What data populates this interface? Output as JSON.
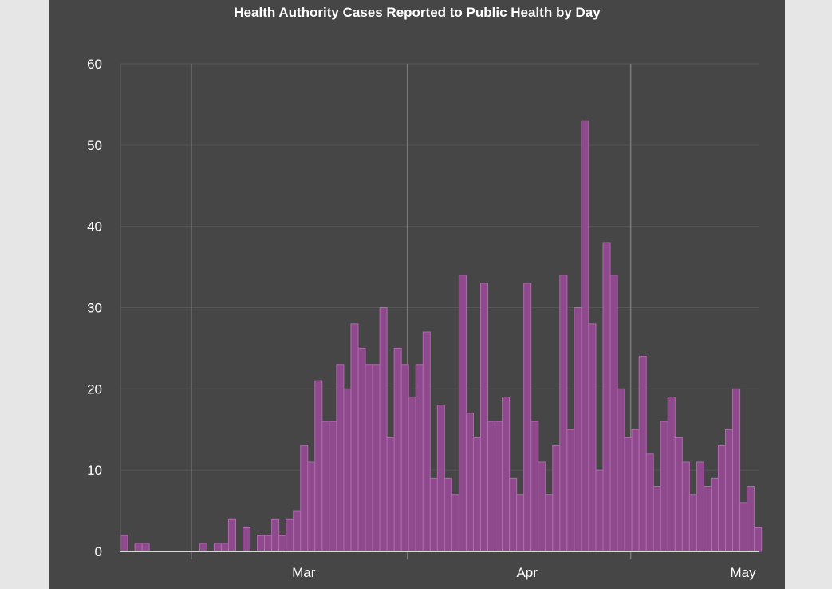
{
  "chart_data": {
    "type": "bar",
    "title": "Health Authority Cases Reported to Public Health by Day",
    "xlabel": "",
    "ylabel": "",
    "ylim": [
      0,
      60
    ],
    "yticks": [
      0,
      10,
      20,
      30,
      40,
      50,
      60
    ],
    "xtick_labels": [
      {
        "label": "Mar",
        "day_index": 25
      },
      {
        "label": "Apr",
        "day_index": 56
      },
      {
        "label": "May",
        "day_index": 86
      }
    ],
    "month_boundaries": [
      10,
      40,
      71
    ],
    "values": [
      2,
      0,
      1,
      1,
      0,
      0,
      0,
      0,
      0,
      0,
      0,
      1,
      0,
      1,
      1,
      4,
      0,
      3,
      0,
      2,
      2,
      4,
      2,
      4,
      5,
      13,
      11,
      21,
      16,
      16,
      23,
      20,
      28,
      25,
      23,
      23,
      30,
      14,
      25,
      23,
      19,
      23,
      27,
      9,
      18,
      9,
      7,
      34,
      17,
      14,
      33,
      16,
      16,
      19,
      9,
      7,
      33,
      16,
      11,
      7,
      13,
      34,
      15,
      30,
      53,
      28,
      10,
      38,
      34,
      20,
      14,
      15,
      24,
      12,
      8,
      16,
      19,
      14,
      11,
      7,
      11,
      8,
      9,
      13,
      15,
      20,
      6,
      8,
      3
    ],
    "bar_color": "#8e4a8c",
    "bar_edge_color": "#b06aae",
    "grid": true
  },
  "colors": {
    "panel_bg": "#464646",
    "page_bg": "#e6e6e6",
    "grid": "#555555",
    "axis": "#d8d8d8",
    "text": "#ffffff"
  }
}
